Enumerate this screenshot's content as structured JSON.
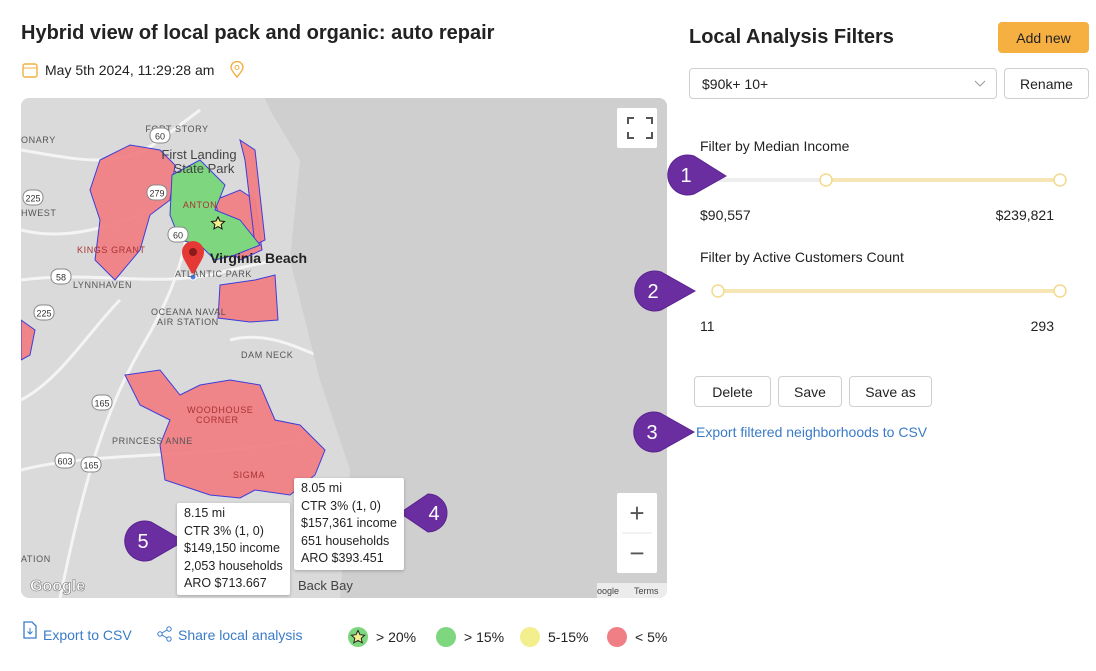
{
  "header": {
    "title": "Hybrid view of local pack and organic: auto repair",
    "timestamp": "May 5th 2024, 11:29:28 am"
  },
  "map": {
    "labels": [
      "FORT STORY",
      "ONARY",
      "HWEST",
      "First Landing",
      "State Park",
      "ANTON",
      "KINGS GRANT",
      "Virginia Beach",
      "ATLANTIC PARK",
      "LYNNHAVEN",
      "OCEANA NAVAL",
      "AIR STATION",
      "DAM NECK",
      "WOODHOUSE",
      "CORNER",
      "PRINCESS ANNE",
      "SIGMA",
      "ATION",
      "Back Bay"
    ],
    "shields": [
      "60",
      "225",
      "279",
      "60",
      "58",
      "225",
      "165",
      "603",
      "165"
    ],
    "attribution": [
      "Google",
      "oogle",
      "Terms"
    ],
    "zoom": [
      "+",
      "−"
    ],
    "tooltips": [
      {
        "lines": [
          "8.15 mi",
          "CTR 3% (1, 0)",
          "$149,150 income",
          "2,053 households",
          "ARO $713.667"
        ]
      },
      {
        "lines": [
          "8.05 mi",
          "CTR 3% (1, 0)",
          "$157,361 income",
          "651 households",
          "ARO $393.451"
        ]
      }
    ]
  },
  "footer": {
    "links": [
      "Export to CSV",
      "Share local analysis"
    ],
    "legend": [
      {
        "label": "> 20%",
        "color": "#7ed67e"
      },
      {
        "label": "> 15%",
        "color": "#7ed67e"
      },
      {
        "label": "5-15%",
        "color": "#f3ee8e"
      },
      {
        "label": "< 5%",
        "color": "#f07f85"
      }
    ]
  },
  "filters": {
    "title": "Local Analysis Filters",
    "add_button": "Add new",
    "selected": "$90k+ 10+",
    "rename_button": "Rename",
    "sliders": [
      {
        "label": "Filter by Median Income",
        "min": "$90,557",
        "max": "$239,821"
      },
      {
        "label": "Filter by Active Customers Count",
        "min": "11",
        "max": "293"
      }
    ],
    "buttons": [
      "Delete",
      "Save",
      "Save as"
    ],
    "export_link": "Export filtered neighborhoods to CSV"
  },
  "callouts": [
    "1",
    "2",
    "3",
    "4",
    "5"
  ]
}
